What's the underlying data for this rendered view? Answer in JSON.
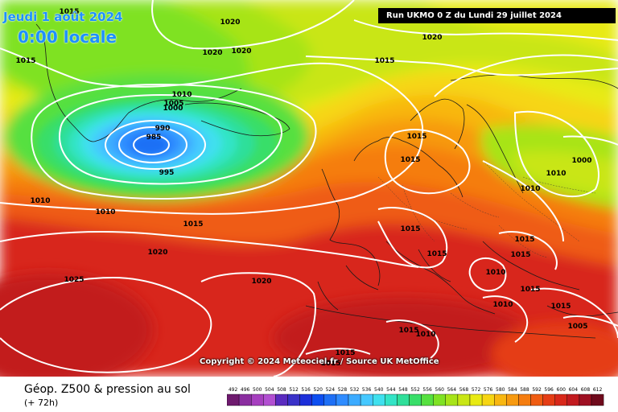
{
  "header": {
    "date": "Jeudi 1 août 2024",
    "time": "0:00 locale",
    "run": "Run UKMO 0 Z du Lundi 29 juillet 2024"
  },
  "map": {
    "copyright": "Copyright © 2024 Meteociel.fr / Source UK MetOffice",
    "pressure_labels": [
      "1015",
      "1015",
      "1020",
      "1020",
      "1020",
      "1020",
      "1015",
      "1010",
      "1005",
      "1000",
      "990",
      "985",
      "995",
      "1010",
      "1010",
      "1015",
      "1020",
      "1025",
      "1020",
      "1015",
      "1015",
      "1010",
      "1015",
      "1015",
      "1015",
      "1015",
      "1010",
      "1010",
      "1015",
      "1015",
      "1015",
      "1010",
      "1005",
      "1000",
      "1010",
      "1015",
      "1015"
    ]
  },
  "legend": {
    "title": "Géop. Z500 & pression au sol",
    "subtitle": "(+ 72h)",
    "scale_values": [
      "492",
      "496",
      "500",
      "504",
      "508",
      "512",
      "516",
      "520",
      "524",
      "528",
      "532",
      "536",
      "540",
      "544",
      "548",
      "552",
      "556",
      "560",
      "564",
      "568",
      "572",
      "576",
      "580",
      "584",
      "588",
      "592",
      "596",
      "600",
      "604",
      "608",
      "612"
    ],
    "scale_colors": [
      "#6e1a6e",
      "#8b2ea0",
      "#a63fbf",
      "#b24fd1",
      "#5a2bbf",
      "#3a31c8",
      "#1c2fd9",
      "#0d4ef0",
      "#1e6ff5",
      "#2f8cff",
      "#3cabff",
      "#45c8ff",
      "#3fe0ee",
      "#33e4c6",
      "#2fdf9a",
      "#38de69",
      "#56e040",
      "#7fe224",
      "#a7e419",
      "#c9e615",
      "#e8ea13",
      "#f6d513",
      "#f8b711",
      "#f79a10",
      "#f57d10",
      "#ef5c12",
      "#e53d15",
      "#d8281a",
      "#c21a1f",
      "#9e1022",
      "#6f0a1c"
    ]
  }
}
